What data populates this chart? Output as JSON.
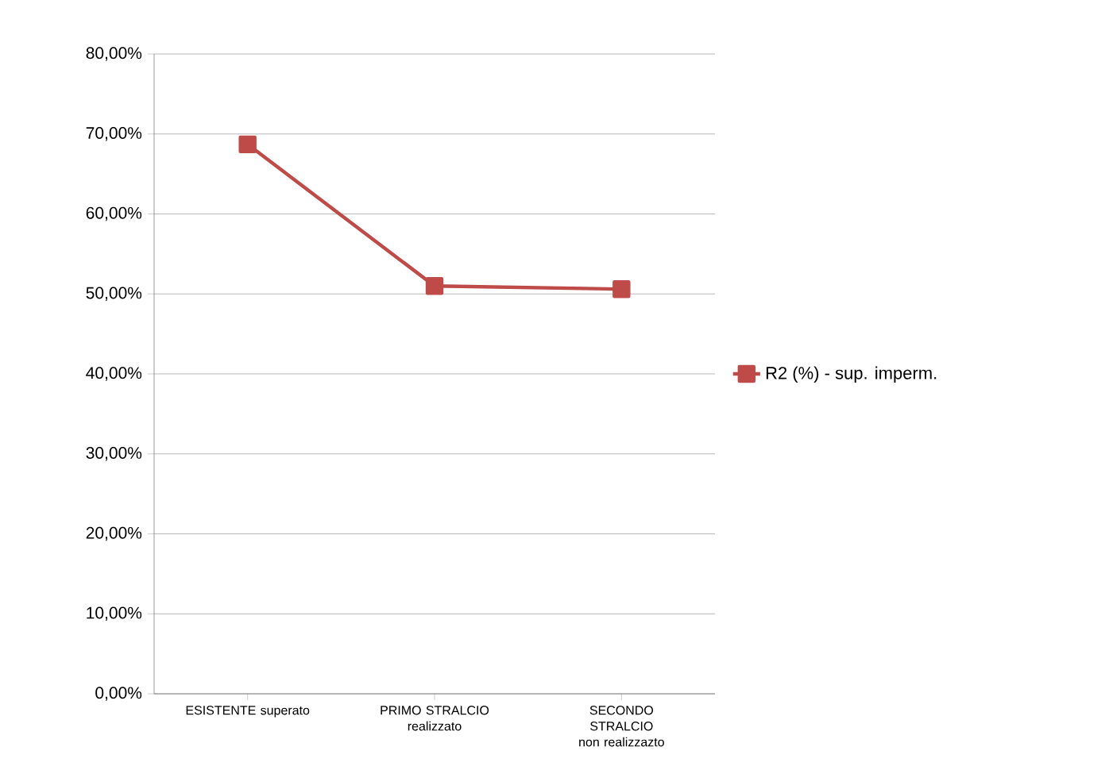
{
  "chart_data": {
    "type": "line",
    "categories": [
      "ESISTENTE superato",
      "PRIMO STRALCIO realizzato",
      "SECONDO STRALCIO non realizzazto"
    ],
    "series": [
      {
        "name": "R2 (%) - sup. imperm.",
        "color": "#be4b48",
        "values": [
          68.7,
          51.0,
          50.6
        ]
      }
    ],
    "ylim": [
      0,
      80
    ],
    "yticks": [
      {
        "value": 0,
        "label": "0,00%"
      },
      {
        "value": 10,
        "label": "10,00%"
      },
      {
        "value": 20,
        "label": "20,00%"
      },
      {
        "value": 30,
        "label": "30,00%"
      },
      {
        "value": 40,
        "label": "40,00%"
      },
      {
        "value": 50,
        "label": "50,00%"
      },
      {
        "value": 60,
        "label": "60,00%"
      },
      {
        "value": 70,
        "label": "70,00%"
      },
      {
        "value": 80,
        "label": "80,00%"
      }
    ],
    "grid": "y",
    "legend": "right",
    "marker": "square",
    "line_style": "solid"
  }
}
